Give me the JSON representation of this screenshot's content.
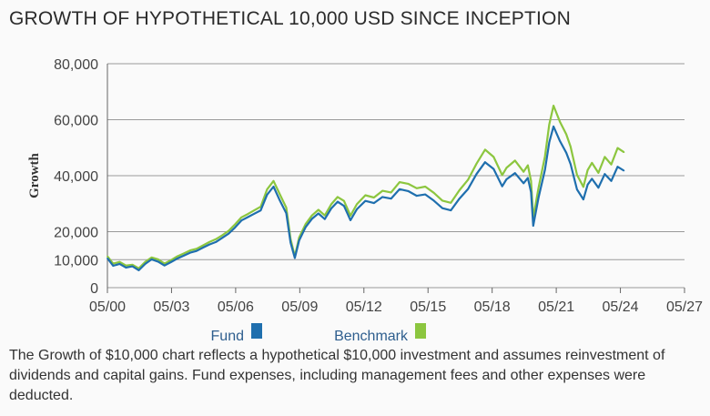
{
  "title": "GROWTH OF HYPOTHETICAL 10,000 USD SINCE INCEPTION",
  "footnote": "The Growth of $10,000 chart reflects a hypothetical $10,000 investment and assumes reinvestment of dividends and capital gains. Fund expenses, including management fees and other expenses were deducted.",
  "colors": {
    "fund": "#1f6fae",
    "benchmark": "#8cc63f",
    "grid": "#9a9a9a"
  },
  "chart_data": {
    "type": "line",
    "title": "GROWTH OF HYPOTHETICAL 10,000 USD SINCE INCEPTION",
    "xlabel": "",
    "ylabel": "Growth",
    "x_ticks": [
      "05/00",
      "05/03",
      "05/06",
      "05/09",
      "05/12",
      "05/15",
      "05/18",
      "05/21",
      "05/24",
      "05/27"
    ],
    "y_ticks": [
      "0",
      "10,000",
      "20,000",
      "40,000",
      "60,000",
      "80,000"
    ],
    "y_tick_values": [
      0,
      10000,
      20000,
      40000,
      60000,
      80000
    ],
    "ylim": [
      0,
      80000
    ],
    "xlim": [
      2000.33,
      2027.33
    ],
    "grid": true,
    "legend": "bottom-left",
    "x": [
      2000.33,
      2000.6,
      2000.9,
      2001.2,
      2001.5,
      2001.8,
      2002.1,
      2002.4,
      2002.7,
      2003.0,
      2003.3,
      2003.6,
      2003.9,
      2004.2,
      2004.5,
      2004.8,
      2005.1,
      2005.4,
      2005.7,
      2006.0,
      2006.3,
      2006.6,
      2006.9,
      2007.2,
      2007.5,
      2007.8,
      2008.1,
      2008.4,
      2008.7,
      2008.9,
      2009.1,
      2009.3,
      2009.6,
      2009.9,
      2010.2,
      2010.5,
      2010.8,
      2011.1,
      2011.4,
      2011.7,
      2012.0,
      2012.4,
      2012.8,
      2013.2,
      2013.6,
      2014.0,
      2014.4,
      2014.8,
      2015.2,
      2015.6,
      2016.0,
      2016.4,
      2016.8,
      2017.2,
      2017.6,
      2018.0,
      2018.4,
      2018.8,
      2019.0,
      2019.4,
      2019.8,
      2020.0,
      2020.15,
      2020.25,
      2020.5,
      2020.8,
      2021.0,
      2021.2,
      2021.5,
      2021.8,
      2022.0,
      2022.3,
      2022.6,
      2022.8,
      2023.0,
      2023.3,
      2023.6,
      2023.9,
      2024.2,
      2024.5
    ],
    "series": [
      {
        "name": "Fund",
        "values": [
          10500,
          7800,
          8500,
          7200,
          7600,
          6200,
          8500,
          10100,
          9300,
          7900,
          9100,
          10400,
          11400,
          12500,
          13100,
          14300,
          15400,
          16300,
          17800,
          19300,
          21500,
          24000,
          25200,
          26400,
          27600,
          33200,
          36100,
          31100,
          26600,
          16100,
          10600,
          16800,
          21600,
          24600,
          26500,
          24500,
          28300,
          30700,
          29200,
          24100,
          28000,
          31000,
          30200,
          32400,
          31800,
          35200,
          34500,
          32800,
          33300,
          31100,
          28400,
          27600,
          31800,
          35200,
          40600,
          44800,
          42400,
          36200,
          38700,
          40900,
          37300,
          39200,
          34100,
          22100,
          32100,
          42100,
          51900,
          57600,
          52400,
          48200,
          44200,
          35100,
          31500,
          36800,
          38900,
          35700,
          40600,
          38100,
          43200,
          41800
        ]
      },
      {
        "name": "Benchmark",
        "values": [
          11200,
          8600,
          9200,
          7900,
          8200,
          6900,
          9200,
          10800,
          10100,
          8600,
          9800,
          11200,
          12200,
          13300,
          13900,
          15100,
          16300,
          17300,
          18700,
          20300,
          22600,
          25100,
          26300,
          27600,
          28900,
          35100,
          38100,
          33300,
          28600,
          17400,
          11200,
          17900,
          22700,
          25800,
          27800,
          25800,
          29800,
          32400,
          31000,
          25700,
          29800,
          33000,
          32200,
          34600,
          34000,
          37700,
          37100,
          35500,
          36100,
          33900,
          31100,
          30300,
          34800,
          38500,
          44300,
          49300,
          46700,
          40200,
          42800,
          45400,
          41400,
          43700,
          38100,
          24900,
          35600,
          46900,
          58300,
          65000,
          59300,
          54800,
          50400,
          40300,
          36000,
          42000,
          44600,
          41000,
          46700,
          44000,
          49900,
          48400
        ]
      }
    ]
  }
}
